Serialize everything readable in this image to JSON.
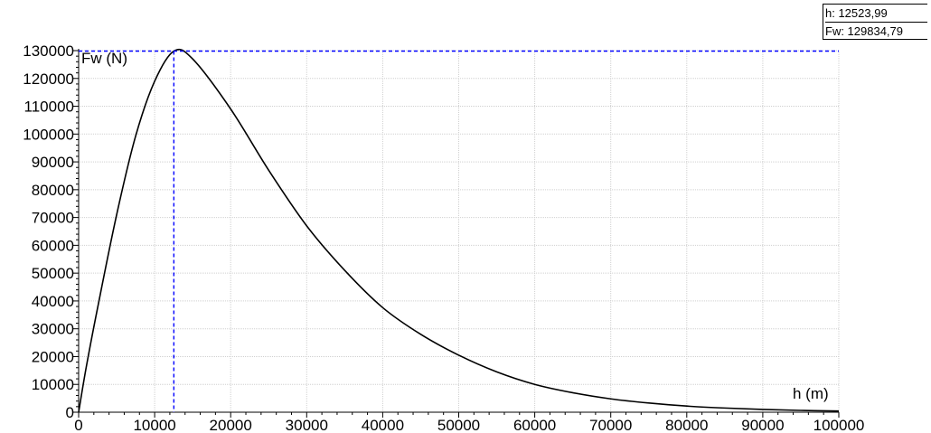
{
  "readout": {
    "h_text": "h: 12523,99",
    "fw_text": "Fw: 129834,79"
  },
  "chart_data": {
    "type": "line",
    "xlabel": "h (m)",
    "ylabel": "Fw (N)",
    "xlim": [
      0,
      100000
    ],
    "ylim": [
      0,
      130000
    ],
    "x_ticks": [
      0,
      10000,
      20000,
      30000,
      40000,
      50000,
      60000,
      70000,
      80000,
      90000,
      100000
    ],
    "x_tick_labels": [
      "0",
      "10000",
      "20000",
      "30000",
      "40000",
      "50000",
      "60000",
      "70000",
      "80000",
      "90000",
      "100000"
    ],
    "y_ticks": [
      0,
      10000,
      20000,
      30000,
      40000,
      50000,
      60000,
      70000,
      80000,
      90000,
      100000,
      110000,
      120000,
      130000
    ],
    "y_tick_labels": [
      "0",
      "10000",
      "20000",
      "30000",
      "40000",
      "50000",
      "60000",
      "70000",
      "80000",
      "90000",
      "100000",
      "110000",
      "120000",
      "130000"
    ],
    "grid": true,
    "cursor": {
      "x": 12523.99,
      "y": 129834.79
    },
    "series": [
      {
        "x": [
          0,
          1000,
          2500,
          5000,
          7500,
          10000,
          12524,
          15000,
          20000,
          25000,
          30000,
          35000,
          40000,
          45000,
          50000,
          55000,
          60000,
          65000,
          70000,
          75000,
          80000,
          85000,
          90000,
          95000,
          100000
        ],
        "y": [
          0,
          16200,
          37600,
          71000,
          99300,
          119000,
          129834,
          127000,
          109000,
          87000,
          67000,
          51000,
          37600,
          28000,
          20500,
          14500,
          10000,
          7000,
          4800,
          3300,
          2200,
          1500,
          1000,
          650,
          420
        ]
      }
    ]
  },
  "colors": {
    "curve": "#000000",
    "cursor": "#0000ff",
    "grid": "#d0d0d0",
    "axis": "#000000"
  }
}
